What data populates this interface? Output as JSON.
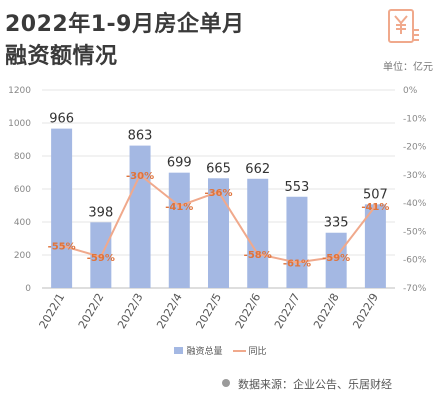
{
  "header": {
    "title_line1": "2022年1-9月房企单月",
    "title_line2": "融资额情况",
    "unit": "单位：亿元",
    "logo_icon": "yuan-document-icon"
  },
  "colors": {
    "bar": "#a4b8e3",
    "line": "#f0a98c",
    "label": "#e0743c",
    "title": "#3a3a3a"
  },
  "chart_data": {
    "type": "bar",
    "categories": [
      "2022/1",
      "2022/2",
      "2022/3",
      "2022/4",
      "2022/5",
      "2022/6",
      "2022/7",
      "2022/8",
      "2022/9"
    ],
    "series": [
      {
        "name": "融资总量",
        "type": "bar",
        "axis": "left",
        "values": [
          966,
          398,
          863,
          699,
          665,
          662,
          553,
          335,
          507
        ]
      },
      {
        "name": "同比",
        "type": "line",
        "axis": "right",
        "values": [
          -55,
          -59,
          -30,
          -41,
          -36,
          -58,
          -61,
          -59,
          -41
        ]
      }
    ],
    "value_labels": [
      "966",
      "398",
      "863",
      "699",
      "665",
      "662",
      "553",
      "335",
      "507"
    ],
    "pct_labels": [
      "-55%",
      "-59%",
      "-30%",
      "-41%",
      "-36%",
      "-58%",
      "-61%",
      "-59%",
      "-41%"
    ],
    "left_axis": {
      "ylim": [
        0,
        1200
      ],
      "ticks": [
        "0",
        "200",
        "400",
        "600",
        "800",
        "1000",
        "1200"
      ]
    },
    "right_axis": {
      "ylim": [
        -70,
        0
      ],
      "ticks": [
        "0%",
        "-10%",
        "-20%",
        "-30%",
        "-40%",
        "-50%",
        "-60%",
        "-70%"
      ]
    },
    "legend": [
      "融资总量",
      "同比"
    ],
    "legend_position": "bottom"
  },
  "footer": {
    "source": "数据来源：企业公告、乐居财经"
  }
}
